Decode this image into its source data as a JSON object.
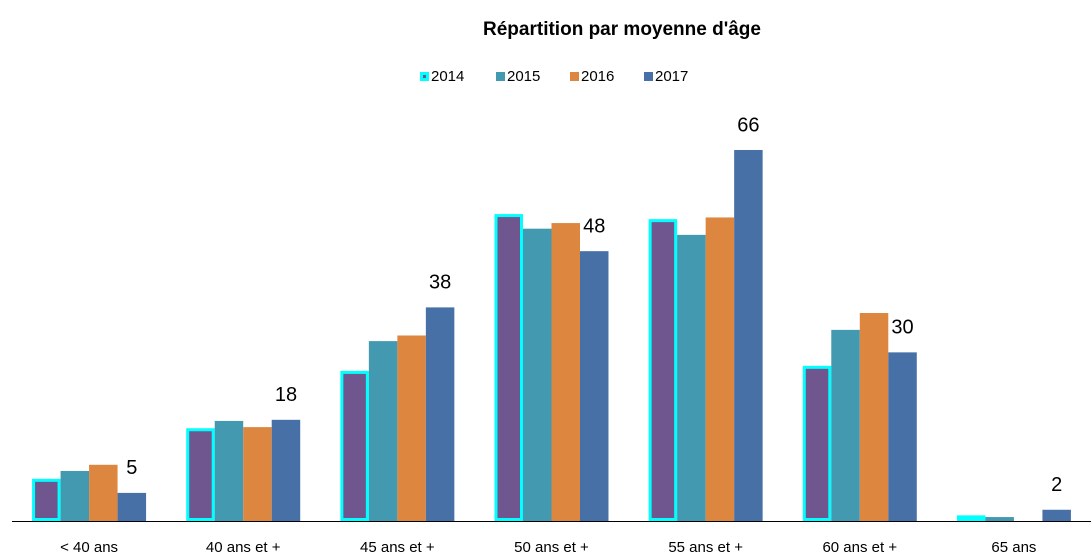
{
  "chart_data": {
    "type": "bar",
    "title": "Répartition par moyenne d'âge",
    "categories": [
      "< 40 ans",
      "40 ans et +",
      "45 ans et +",
      "50 ans et +",
      "55 ans et +",
      "60 ans et +",
      "65 ans"
    ],
    "series": [
      {
        "name": "2014",
        "color": "#70568e",
        "outline": "#00ffff",
        "values": [
          7.5,
          16.5,
          26.7,
          54.6,
          53.7,
          27.6,
          1
        ]
      },
      {
        "name": "2015",
        "color": "#4299b0",
        "values": [
          8.9,
          17.8,
          32,
          52,
          50.9,
          34,
          0.7
        ]
      },
      {
        "name": "2016",
        "color": "#dd8640",
        "values": [
          10,
          16.7,
          33,
          53,
          54,
          37,
          0
        ]
      },
      {
        "name": "2017",
        "color": "#4771a6",
        "show_labels": true,
        "values": [
          5,
          18,
          38,
          48,
          66,
          30,
          2
        ]
      }
    ],
    "ylim": [
      0,
      70
    ],
    "legend": "top"
  }
}
